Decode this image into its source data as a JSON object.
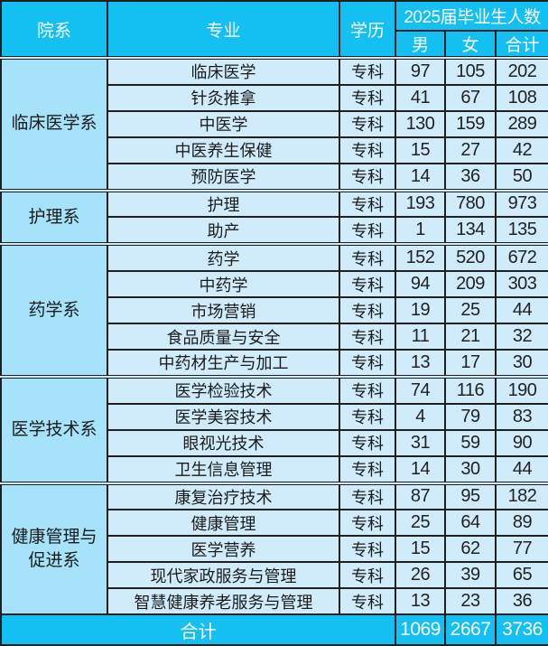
{
  "header": {
    "dept": "院系",
    "major": "专业",
    "level": "学历",
    "group": "2025届毕业生人数",
    "male": "男",
    "female": "女",
    "total": "合计"
  },
  "footer": {
    "label": "合计",
    "male": "1069",
    "female": "2667",
    "total": "3736"
  },
  "colors": {
    "header_bg": "#14C0F2",
    "footer_bg": "#14C0F2",
    "dept_cell_bg": "#A6E2FA",
    "body_cell_bg": "#D0ECFB",
    "border": "#1F1F1F",
    "header_text": "#FFFFFF",
    "body_text": "#1B1B1B"
  },
  "chart_data": {
    "type": "table",
    "title": "2025届毕业生人数",
    "columns": [
      "院系",
      "专业",
      "学历",
      "男",
      "女",
      "合计"
    ],
    "rows": [
      [
        "临床医学系",
        "临床医学",
        "专科",
        97,
        105,
        202
      ],
      [
        "临床医学系",
        "针灸推拿",
        "专科",
        41,
        67,
        108
      ],
      [
        "临床医学系",
        "中医学",
        "专科",
        130,
        159,
        289
      ],
      [
        "临床医学系",
        "中医养生保健",
        "专科",
        15,
        27,
        42
      ],
      [
        "临床医学系",
        "预防医学",
        "专科",
        14,
        36,
        50
      ],
      [
        "护理系",
        "护理",
        "专科",
        193,
        780,
        973
      ],
      [
        "护理系",
        "助产",
        "专科",
        1,
        134,
        135
      ],
      [
        "药学系",
        "药学",
        "专科",
        152,
        520,
        672
      ],
      [
        "药学系",
        "中药学",
        "专科",
        94,
        209,
        303
      ],
      [
        "药学系",
        "市场营销",
        "专科",
        19,
        25,
        44
      ],
      [
        "药学系",
        "食品质量与安全",
        "专科",
        11,
        21,
        32
      ],
      [
        "药学系",
        "中药材生产与加工",
        "专科",
        13,
        17,
        30
      ],
      [
        "医学技术系",
        "医学检验技术",
        "专科",
        74,
        116,
        190
      ],
      [
        "医学技术系",
        "医学美容技术",
        "专科",
        4,
        79,
        83
      ],
      [
        "医学技术系",
        "眼视光技术",
        "专科",
        31,
        59,
        90
      ],
      [
        "医学技术系",
        "卫生信息管理",
        "专科",
        14,
        30,
        44
      ],
      [
        "健康管理与促进系",
        "康复治疗技术",
        "专科",
        87,
        95,
        182
      ],
      [
        "健康管理与促进系",
        "健康管理",
        "专科",
        25,
        64,
        89
      ],
      [
        "健康管理与促进系",
        "医学营养",
        "专科",
        15,
        62,
        77
      ],
      [
        "健康管理与促进系",
        "现代家政服务与管理",
        "专科",
        26,
        39,
        65
      ],
      [
        "健康管理与促进系",
        "智慧健康养老服务与管理",
        "专科",
        13,
        23,
        36
      ]
    ],
    "totals_row": [
      "合计",
      1069,
      2667,
      3736
    ],
    "layout": {
      "grid": true,
      "grouped_rowspan_column": "院系",
      "totals_position": "bottom"
    }
  }
}
